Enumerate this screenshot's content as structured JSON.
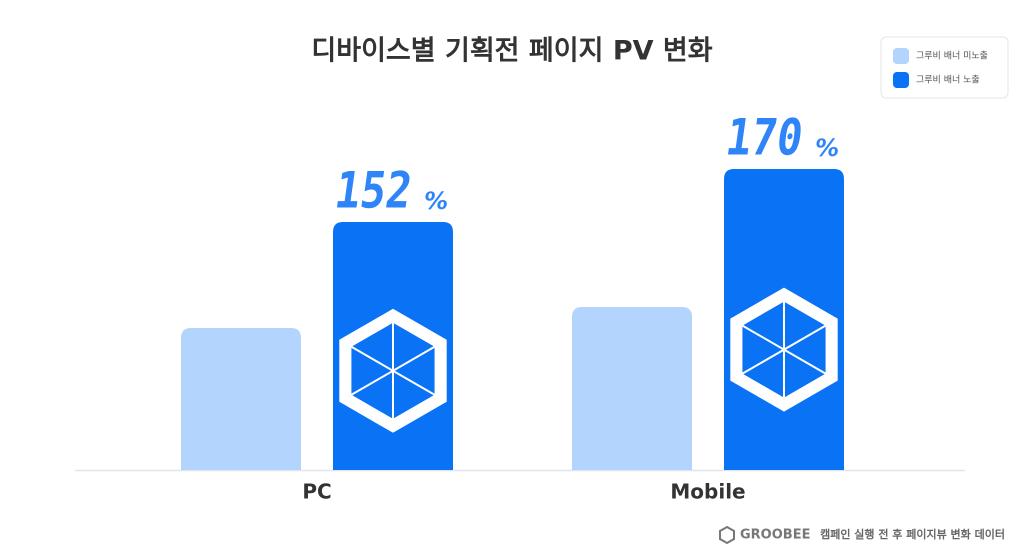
{
  "chart_data": {
    "type": "bar",
    "title": "디바이스별 기획전 페이지 PV 변화",
    "categories": [
      "PC",
      "Mobile"
    ],
    "series": [
      {
        "name": "그루비 배너 미노출",
        "color": "#b3d4fd",
        "values": [
          142,
          163
        ]
      },
      {
        "name": "그루비 배너 노출",
        "color": "#0a72f5",
        "values": [
          248,
          301
        ]
      }
    ],
    "annotations": [
      {
        "number": "152",
        "unit": "%"
      },
      {
        "number": "170",
        "unit": "%"
      }
    ],
    "legend": "top-right",
    "source": {
      "brand": "GROOBEE",
      "text": "캠페인 실행 전 후 페이지뷰 변화 데이터"
    }
  }
}
